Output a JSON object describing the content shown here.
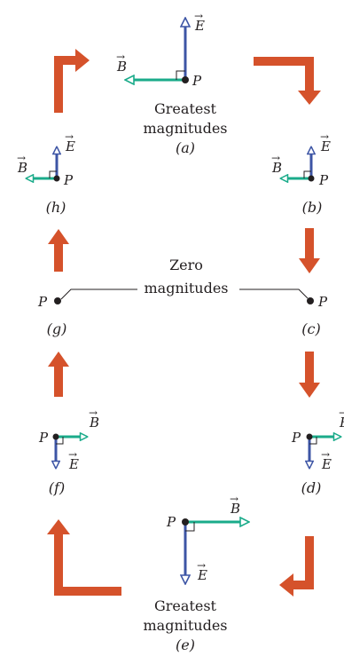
{
  "labels": {
    "E": "E",
    "B": "B",
    "P": "P",
    "greatest": "Greatest",
    "zero": "Zero",
    "magnitudes": "magnitudes"
  },
  "panels": [
    {
      "id": "a",
      "caption": "(a)"
    },
    {
      "id": "b",
      "caption": "(b)"
    },
    {
      "id": "c",
      "caption": "(c)"
    },
    {
      "id": "d",
      "caption": "(d)"
    },
    {
      "id": "e",
      "caption": "(e)"
    },
    {
      "id": "f",
      "caption": "(f)"
    },
    {
      "id": "g",
      "caption": "(g)"
    },
    {
      "id": "h",
      "caption": "(h)"
    }
  ],
  "colors": {
    "cycle_arrow": "#d5522b",
    "E_vector": "#3d55a5",
    "B_vector": "#1aab8a",
    "text": "#231f20"
  },
  "icons": {
    "cycle_arrow": "thick-orange-arrow",
    "vector_head": "open-triangle-arrowhead",
    "right_angle": "square-corner-mark"
  }
}
